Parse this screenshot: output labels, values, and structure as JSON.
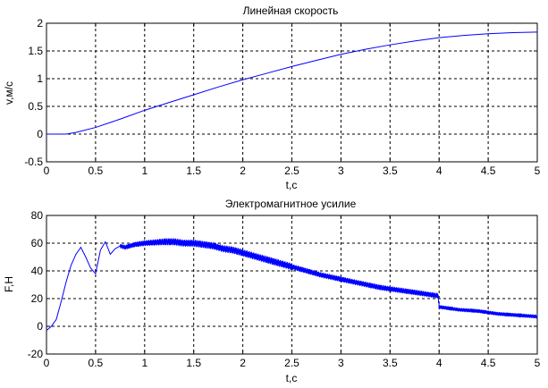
{
  "chart_data": [
    {
      "type": "line",
      "title": "Линейная скорость",
      "xlabel": "t,c",
      "ylabel": "v,м/c",
      "xlim": [
        0,
        5
      ],
      "ylim": [
        -0.5,
        2
      ],
      "xticks": [
        0,
        0.5,
        1,
        1.5,
        2,
        2.5,
        3,
        3.5,
        4,
        4.5,
        5
      ],
      "yticks": [
        -0.5,
        0,
        0.5,
        1,
        1.5,
        2
      ],
      "xtick_labels": [
        "0",
        "0.5",
        "1",
        "1.5",
        "2",
        "2.5",
        "3",
        "3.5",
        "4",
        "4.5",
        "5"
      ],
      "ytick_labels": [
        "-0.5",
        "0",
        "0.5",
        "1",
        "1.5",
        "2"
      ],
      "grid": true,
      "color": "#0000ff",
      "series": [
        {
          "x": [
            0,
            0.2,
            0.3,
            0.5,
            0.75,
            1.0,
            1.25,
            1.5,
            1.75,
            2.0,
            2.25,
            2.5,
            2.75,
            3.0,
            3.25,
            3.5,
            3.75,
            4.0,
            4.25,
            4.5,
            4.75,
            5.0
          ],
          "y": [
            0,
            0,
            0.03,
            0.12,
            0.27,
            0.43,
            0.57,
            0.71,
            0.85,
            0.98,
            1.1,
            1.22,
            1.33,
            1.44,
            1.53,
            1.61,
            1.68,
            1.74,
            1.78,
            1.81,
            1.83,
            1.84
          ]
        }
      ]
    },
    {
      "type": "line",
      "title": "Электромагнитное усилие",
      "xlabel": "t,c",
      "ylabel": "F,H",
      "xlim": [
        0,
        5
      ],
      "ylim": [
        -20,
        80
      ],
      "xticks": [
        0,
        0.5,
        1,
        1.5,
        2,
        2.5,
        3,
        3.5,
        4,
        4.5,
        5
      ],
      "yticks": [
        -20,
        0,
        20,
        40,
        60,
        80
      ],
      "xtick_labels": [
        "0",
        "0.5",
        "1",
        "1.5",
        "2",
        "2.5",
        "3",
        "3.5",
        "4",
        "4.5",
        "5"
      ],
      "ytick_labels": [
        "-20",
        "0",
        "20",
        "40",
        "60",
        "80"
      ],
      "grid": true,
      "color": "#0000ff",
      "series": [
        {
          "x": [
            0,
            0.05,
            0.1,
            0.15,
            0.2,
            0.25,
            0.3,
            0.35,
            0.4,
            0.45,
            0.5,
            0.55,
            0.6,
            0.65,
            0.7,
            0.75,
            0.8,
            0.9,
            1.0,
            1.1,
            1.2,
            1.3,
            1.4,
            1.5,
            1.6,
            1.7,
            1.8,
            1.9,
            2.0,
            2.2,
            2.4,
            2.6,
            2.8,
            3.0,
            3.2,
            3.4,
            3.6,
            3.8,
            3.99,
            4.0,
            4.2,
            4.4,
            4.6,
            4.8,
            5.0
          ],
          "y": [
            -3,
            0,
            5,
            18,
            32,
            44,
            52,
            57,
            50,
            42,
            38,
            55,
            61,
            52,
            56,
            58,
            57,
            59,
            60,
            60.5,
            61,
            61,
            60,
            60,
            59,
            58,
            56,
            55,
            53,
            49,
            45,
            41,
            37,
            34,
            31,
            28,
            26,
            24,
            22,
            14,
            12,
            11,
            9,
            8,
            7
          ]
        }
      ]
    }
  ]
}
